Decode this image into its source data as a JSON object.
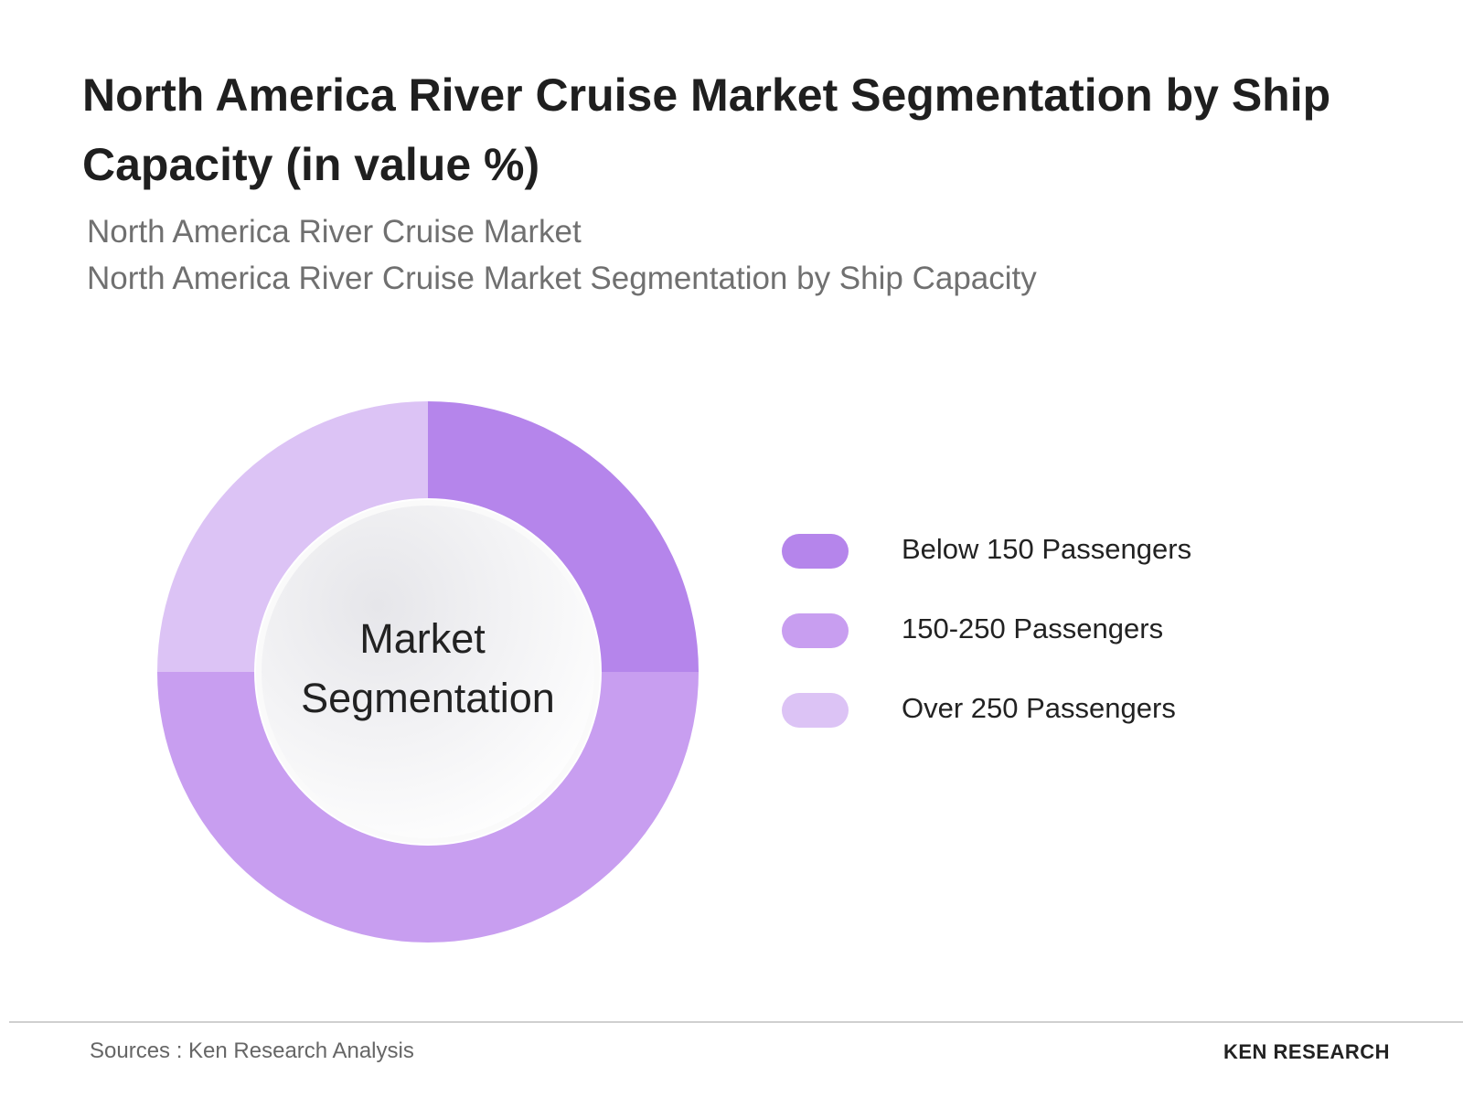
{
  "chart_data": {
    "type": "donut",
    "title": "North America River Cruise Market Segmentation by Ship Capacity (in value %)",
    "subtitle": [
      "North America River Cruise Market",
      "North America River Cruise Market Segmentation by Ship Capacity"
    ],
    "center_label": [
      "Market",
      "Segmentation"
    ],
    "categories": [
      "Below 150 Passengers",
      "150-250 Passengers",
      "Over 250 Passengers"
    ],
    "values": [
      25,
      50,
      25
    ],
    "colors": [
      "#b585eb",
      "#c89ef0",
      "#dcc3f5"
    ]
  },
  "footer": {
    "source": "Sources : Ken Research Analysis",
    "logo": "KEN RESEARCH"
  }
}
